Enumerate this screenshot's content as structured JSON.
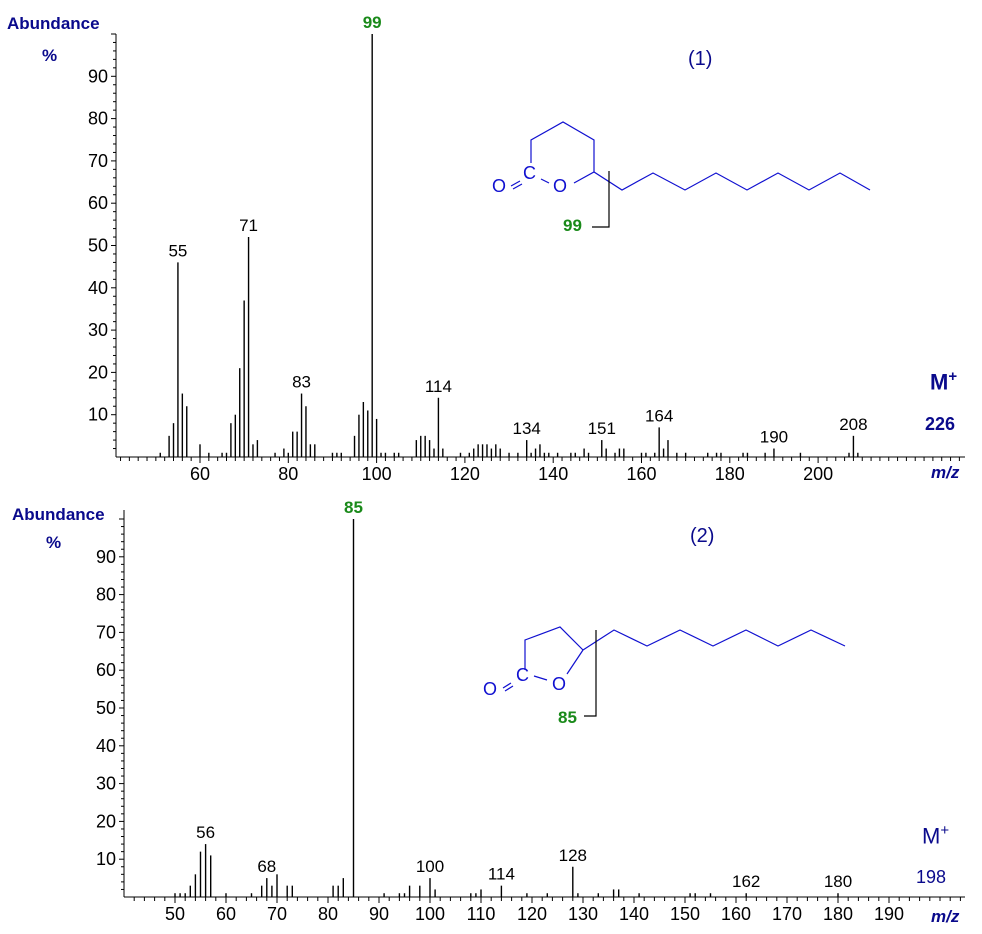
{
  "colors": {
    "axis_label": "#0a0a8c",
    "base_peak": "#1a8a1a",
    "structure": "#1010d0",
    "bars": "#000000"
  },
  "chart_data": [
    {
      "type": "bar",
      "title": "(1)",
      "ylabel": "Abundance %",
      "xlabel": "m/z",
      "ylim": [
        0,
        100
      ],
      "xlim": [
        40,
        230
      ],
      "yticks": [
        10,
        20,
        30,
        40,
        50,
        60,
        70,
        80,
        90
      ],
      "xticks": [
        60,
        80,
        100,
        120,
        140,
        160,
        180,
        200
      ],
      "base_peak": 99,
      "molecular_ion": {
        "label": "M+",
        "value": "226"
      },
      "labeled_peaks": [
        55,
        71,
        83,
        99,
        114,
        134,
        151,
        164,
        190,
        208
      ],
      "fragment_label": "99",
      "x": [
        51,
        53,
        54,
        55,
        56,
        57,
        60,
        62,
        65,
        66,
        67,
        68,
        69,
        70,
        71,
        72,
        73,
        77,
        79,
        80,
        81,
        82,
        83,
        84,
        85,
        86,
        90,
        91,
        92,
        95,
        96,
        97,
        98,
        99,
        100,
        101,
        102,
        104,
        105,
        109,
        110,
        111,
        112,
        113,
        114,
        115,
        119,
        121,
        122,
        123,
        124,
        125,
        126,
        127,
        128,
        130,
        132,
        134,
        135,
        136,
        137,
        138,
        139,
        141,
        144,
        145,
        147,
        148,
        151,
        152,
        154,
        155,
        156,
        160,
        161,
        163,
        164,
        165,
        166,
        168,
        170,
        175,
        177,
        178,
        183,
        184,
        188,
        190,
        196,
        207,
        208,
        209
      ],
      "values": [
        1,
        5,
        8,
        46,
        15,
        12,
        3,
        1,
        1,
        1,
        8,
        10,
        21,
        37,
        52,
        3,
        4,
        1,
        2,
        1,
        6,
        6,
        15,
        12,
        3,
        3,
        1,
        1,
        1,
        5,
        10,
        13,
        11,
        100,
        9,
        1,
        1,
        1,
        1,
        4,
        5,
        5,
        4,
        2,
        14,
        2,
        1,
        1,
        2,
        3,
        3,
        3,
        2,
        3,
        2,
        1,
        1,
        4,
        1,
        2,
        3,
        1,
        1,
        1,
        1,
        1,
        2,
        1,
        4,
        2,
        1,
        2,
        2,
        1,
        1,
        1,
        7,
        2,
        4,
        1,
        1,
        1,
        1,
        1,
        1,
        1,
        1,
        2,
        1,
        1,
        5,
        1
      ]
    },
    {
      "type": "bar",
      "title": "(2)",
      "ylabel": "Abundance %",
      "xlabel": "m/z",
      "ylim": [
        0,
        100
      ],
      "xlim": [
        40,
        205
      ],
      "yticks": [
        10,
        20,
        30,
        40,
        50,
        60,
        70,
        80,
        90
      ],
      "xticks": [
        50,
        60,
        70,
        80,
        90,
        100,
        110,
        120,
        130,
        140,
        150,
        160,
        170,
        180,
        190
      ],
      "base_peak": 85,
      "molecular_ion": {
        "label": "M+",
        "value": "198"
      },
      "labeled_peaks": [
        56,
        68,
        85,
        100,
        114,
        128,
        162,
        180
      ],
      "fragment_label": "85",
      "x": [
        50,
        51,
        52,
        53,
        54,
        55,
        56,
        57,
        60,
        65,
        67,
        68,
        69,
        70,
        72,
        73,
        81,
        82,
        83,
        85,
        91,
        94,
        95,
        96,
        98,
        100,
        101,
        108,
        109,
        110,
        114,
        119,
        123,
        128,
        129,
        133,
        136,
        137,
        141,
        151,
        152,
        155,
        162,
        180
      ],
      "values": [
        1,
        1,
        1,
        3,
        6,
        12,
        14,
        11,
        1,
        1,
        3,
        5,
        3,
        6,
        3,
        3,
        3,
        3,
        5,
        100,
        1,
        1,
        1,
        3,
        3,
        5,
        2,
        1,
        1,
        2,
        3,
        1,
        1,
        8,
        1,
        1,
        2,
        2,
        1,
        1,
        1,
        1,
        1,
        1
      ]
    }
  ],
  "panel1": {
    "ylabel_line1": "Abundance",
    "ylabel_line2": "%",
    "title": "(1)",
    "xlabel": "m/z",
    "m_plus": "M",
    "m_plus_sup": "+",
    "m_value": "226",
    "base_label": "99",
    "fragment_label": "99",
    "atom_o1": "O",
    "atom_c": "C",
    "atom_o2": "O"
  },
  "panel2": {
    "ylabel_line1": "Abundance",
    "ylabel_line2": "%",
    "title": "(2)",
    "xlabel": "m/z",
    "m_plus": "M",
    "m_plus_sup": "+",
    "m_value": "198",
    "base_label": "85",
    "fragment_label": "85",
    "atom_o1": "O",
    "atom_c": "C",
    "atom_o2": "O"
  }
}
